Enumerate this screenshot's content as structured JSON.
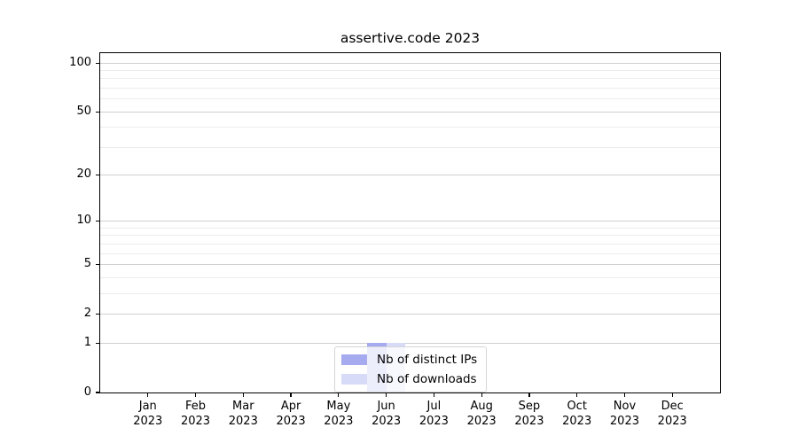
{
  "chart_data": {
    "type": "bar",
    "title": "assertive.code 2023",
    "months": [
      "Jan",
      "Feb",
      "Mar",
      "Apr",
      "May",
      "Jun",
      "Jul",
      "Aug",
      "Sep",
      "Oct",
      "Nov",
      "Dec"
    ],
    "year_label": "2023",
    "series": [
      {
        "name": "Nb of distinct IPs",
        "color": "#a6abef",
        "values": [
          0,
          0,
          0,
          0,
          0,
          1,
          0,
          0,
          0,
          0,
          0,
          0
        ]
      },
      {
        "name": "Nb of downloads",
        "color": "#d7dbf8",
        "values": [
          0,
          0,
          0,
          0,
          0,
          1,
          0,
          0,
          0,
          0,
          0,
          0
        ]
      }
    ],
    "yscale": "log1p",
    "ylim": [
      0,
      115
    ],
    "yticks": [
      0,
      1,
      2,
      5,
      10,
      20,
      50,
      100
    ],
    "minor_yticks": [
      3,
      4,
      6,
      7,
      8,
      9,
      30,
      40,
      60,
      70,
      80,
      90
    ],
    "grid": true,
    "legend_position": "lower center",
    "colors": {
      "major_grid": "#cfcfcf",
      "minor_grid": "#ececec",
      "axis": "#000000"
    }
  }
}
